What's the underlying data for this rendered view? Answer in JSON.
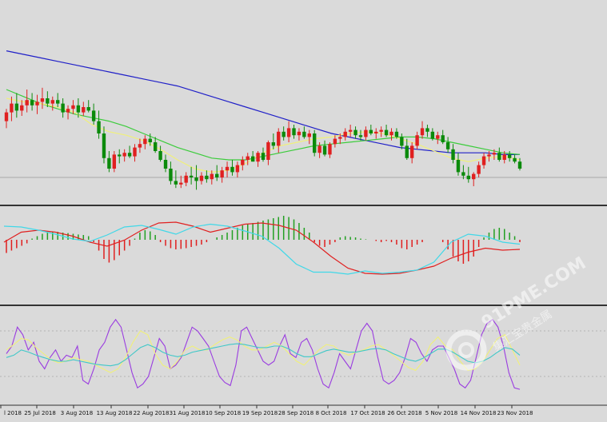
{
  "watermark": {
    "text": "91PME.COM",
    "subtext": "集汇宝贵金属"
  },
  "colors": {
    "background": "#dadada",
    "bull": "#e02020",
    "bear": "#0b8a0b",
    "doji": "#0a0a0a",
    "ma_slow": "#2020c8",
    "ma_mid": "#3ccc3c",
    "ma_fast": "#f0f07a",
    "macd_hist_pos": "#22a022",
    "macd_hist_neg": "#e02020",
    "macd_signal": "#e02020",
    "macd_main": "#40d8e8",
    "stoch_k": "#9a3ce0",
    "stoch_d": "#f0f07a",
    "stoch_slow": "#40c8c8",
    "divider": "#333333",
    "level_line": "#a8a8a8"
  },
  "chart_data": [
    {
      "type": "candlestick",
      "panel": "price",
      "x_axis_labels": [
        "l 2018",
        "25 Jul 2018",
        "3 Aug 2018",
        "13 Aug 2018",
        "22 Aug 2018",
        "31 Aug 2018",
        "10 Sep 2018",
        "19 Sep 2018",
        "28 Sep 2018",
        "8 Oct 2018",
        "17 Oct 2018",
        "26 Oct 2018",
        "5 Nov 2018",
        "14 Nov 2018",
        "23 Nov 2018"
      ],
      "ohlc": [
        [
          0.22,
          0.29,
          0.18,
          0.27
        ],
        [
          0.27,
          0.36,
          0.22,
          0.32
        ],
        [
          0.32,
          0.38,
          0.24,
          0.28
        ],
        [
          0.28,
          0.34,
          0.25,
          0.31
        ],
        [
          0.31,
          0.4,
          0.27,
          0.34
        ],
        [
          0.34,
          0.38,
          0.28,
          0.31
        ],
        [
          0.31,
          0.37,
          0.26,
          0.33
        ],
        [
          0.33,
          0.41,
          0.29,
          0.35
        ],
        [
          0.35,
          0.39,
          0.3,
          0.32
        ],
        [
          0.32,
          0.36,
          0.28,
          0.34
        ],
        [
          0.34,
          0.38,
          0.3,
          0.32
        ],
        [
          0.32,
          0.35,
          0.24,
          0.27
        ],
        [
          0.27,
          0.31,
          0.23,
          0.29
        ],
        [
          0.29,
          0.34,
          0.26,
          0.31
        ],
        [
          0.31,
          0.35,
          0.24,
          0.27
        ],
        [
          0.27,
          0.33,
          0.25,
          0.3
        ],
        [
          0.3,
          0.34,
          0.27,
          0.28
        ],
        [
          0.28,
          0.32,
          0.2,
          0.22
        ],
        [
          0.22,
          0.28,
          0.12,
          0.15
        ],
        [
          0.15,
          0.19,
          -0.02,
          0.01
        ],
        [
          0.01,
          0.05,
          -0.07,
          -0.05
        ],
        [
          -0.05,
          0.05,
          -0.07,
          0.03
        ],
        [
          0.03,
          0.06,
          -0.02,
          0.02
        ],
        [
          0.02,
          0.06,
          -0.01,
          0.04
        ],
        [
          0.04,
          0.08,
          0.01,
          0.02
        ],
        [
          0.02,
          0.09,
          -0.01,
          0.07
        ],
        [
          0.07,
          0.12,
          0.04,
          0.09
        ],
        [
          0.09,
          0.14,
          0.06,
          0.12
        ],
        [
          0.12,
          0.15,
          0.08,
          0.1
        ],
        [
          0.1,
          0.13,
          0.04,
          0.05
        ],
        [
          0.05,
          0.08,
          -0.01,
          0.0
        ],
        [
          0.0,
          0.03,
          -0.07,
          -0.05
        ],
        [
          -0.05,
          -0.01,
          -0.14,
          -0.12
        ],
        [
          -0.12,
          -0.06,
          -0.16,
          -0.14
        ],
        [
          -0.14,
          -0.09,
          -0.16,
          -0.13
        ],
        [
          -0.13,
          -0.07,
          -0.15,
          -0.09
        ],
        [
          -0.09,
          -0.04,
          -0.14,
          -0.1
        ],
        [
          -0.1,
          -0.03,
          -0.17,
          -0.12
        ],
        [
          -0.12,
          -0.07,
          -0.14,
          -0.09
        ],
        [
          -0.09,
          -0.06,
          -0.13,
          -0.11
        ],
        [
          -0.11,
          -0.06,
          -0.14,
          -0.08
        ],
        [
          -0.08,
          -0.03,
          -0.12,
          -0.1
        ],
        [
          -0.1,
          -0.04,
          -0.13,
          -0.06
        ],
        [
          -0.06,
          -0.01,
          -0.1,
          -0.04
        ],
        [
          -0.04,
          0.0,
          -0.09,
          -0.07
        ],
        [
          -0.07,
          -0.01,
          -0.1,
          -0.03
        ],
        [
          -0.03,
          0.02,
          -0.06,
          0.0
        ],
        [
          0.0,
          0.04,
          -0.03,
          0.02
        ],
        [
          0.02,
          0.05,
          -0.01,
          -0.01
        ],
        [
          -0.01,
          0.05,
          -0.04,
          0.04
        ],
        [
          0.04,
          0.07,
          -0.01,
          0.0
        ],
        [
          0.0,
          0.11,
          -0.03,
          0.1
        ],
        [
          0.1,
          0.15,
          0.06,
          0.08
        ],
        [
          0.08,
          0.18,
          0.04,
          0.16
        ],
        [
          0.16,
          0.19,
          0.11,
          0.13
        ],
        [
          0.13,
          0.22,
          0.1,
          0.18
        ],
        [
          0.18,
          0.2,
          0.12,
          0.14
        ],
        [
          0.14,
          0.18,
          0.11,
          0.16
        ],
        [
          0.16,
          0.19,
          0.12,
          0.13
        ],
        [
          0.13,
          0.17,
          0.09,
          0.15
        ],
        [
          0.15,
          0.17,
          0.02,
          0.04
        ],
        [
          0.04,
          0.1,
          0.01,
          0.08
        ],
        [
          0.08,
          0.11,
          0.02,
          0.03
        ],
        [
          0.03,
          0.1,
          0.01,
          0.09
        ],
        [
          0.09,
          0.14,
          0.07,
          0.12
        ],
        [
          0.12,
          0.15,
          0.09,
          0.13
        ],
        [
          0.13,
          0.18,
          0.11,
          0.16
        ],
        [
          0.16,
          0.2,
          0.13,
          0.17
        ],
        [
          0.17,
          0.19,
          0.12,
          0.14
        ],
        [
          0.14,
          0.17,
          0.11,
          0.13
        ],
        [
          0.13,
          0.19,
          0.11,
          0.17
        ],
        [
          0.17,
          0.2,
          0.14,
          0.15
        ],
        [
          0.15,
          0.18,
          0.12,
          0.16
        ],
        [
          0.16,
          0.19,
          0.13,
          0.17
        ],
        [
          0.17,
          0.2,
          0.13,
          0.14
        ],
        [
          0.14,
          0.18,
          0.11,
          0.16
        ],
        [
          0.16,
          0.18,
          0.12,
          0.13
        ],
        [
          0.13,
          0.15,
          0.06,
          0.08
        ],
        [
          0.08,
          0.12,
          0.0,
          0.01
        ],
        [
          0.01,
          0.1,
          -0.02,
          0.08
        ],
        [
          0.08,
          0.16,
          0.06,
          0.14
        ],
        [
          0.14,
          0.22,
          0.12,
          0.18
        ],
        [
          0.18,
          0.2,
          0.13,
          0.16
        ],
        [
          0.16,
          0.18,
          0.11,
          0.12
        ],
        [
          0.12,
          0.16,
          0.09,
          0.14
        ],
        [
          0.14,
          0.17,
          0.09,
          0.1
        ],
        [
          0.1,
          0.13,
          0.04,
          0.06
        ],
        [
          0.06,
          0.09,
          -0.02,
          0.0
        ],
        [
          0.0,
          0.04,
          -0.09,
          -0.07
        ],
        [
          -0.07,
          -0.03,
          -0.11,
          -0.09
        ],
        [
          -0.09,
          -0.04,
          -0.13,
          -0.11
        ],
        [
          -0.11,
          -0.07,
          -0.15,
          -0.08
        ],
        [
          -0.08,
          -0.01,
          -0.1,
          -0.03
        ],
        [
          -0.03,
          0.04,
          -0.05,
          0.02
        ],
        [
          0.02,
          0.05,
          -0.01,
          0.03
        ],
        [
          0.03,
          0.06,
          0.0,
          0.04
        ],
        [
          0.04,
          0.07,
          -0.01,
          0.0
        ],
        [
          0.0,
          0.05,
          -0.02,
          0.03
        ],
        [
          0.03,
          0.05,
          -0.01,
          0.01
        ],
        [
          0.01,
          0.03,
          -0.02,
          -0.01
        ],
        [
          -0.01,
          0.01,
          -0.06,
          -0.05
        ]
      ],
      "moving_averages": [
        {
          "color_key": "ma_slow",
          "values": [
            0.62,
            0.6,
            0.58,
            0.56,
            0.54,
            0.52,
            0.5,
            0.48,
            0.46,
            0.44,
            0.42,
            0.39,
            0.36,
            0.33,
            0.3,
            0.27,
            0.24,
            0.21,
            0.18,
            0.15,
            0.13,
            0.11,
            0.09,
            0.07,
            0.06,
            0.05,
            0.04,
            0.04,
            0.04,
            0.03,
            0.03
          ]
        },
        {
          "color_key": "ma_mid",
          "values": [
            0.4,
            0.36,
            0.32,
            0.29,
            0.26,
            0.24,
            0.22,
            0.19,
            0.15,
            0.11,
            0.07,
            0.04,
            0.01,
            0.0,
            0.0,
            0.02,
            0.04,
            0.06,
            0.08,
            0.09,
            0.1,
            0.11,
            0.12,
            0.13,
            0.13,
            0.12,
            0.1,
            0.08,
            0.06,
            0.04,
            0.03
          ]
        },
        {
          "color_key": "ma_fast",
          "values": [
            0.35,
            0.33,
            0.32,
            0.3,
            0.27,
            0.2,
            0.16,
            0.14,
            0.11,
            0.06,
            0.0,
            -0.05,
            -0.07,
            -0.06,
            -0.02,
            0.04,
            0.08,
            0.1,
            0.12,
            0.13,
            0.15,
            0.16,
            0.15,
            0.12,
            0.09,
            0.05,
            0.01,
            -0.01,
            0.01,
            0.02,
            0.0
          ]
        }
      ]
    },
    {
      "type": "histogram-with-lines",
      "panel": "macd",
      "histogram": [
        -0.55,
        -0.45,
        -0.35,
        -0.25,
        -0.15,
        0.05,
        0.15,
        0.25,
        0.3,
        0.35,
        0.33,
        0.3,
        0.28,
        0.25,
        0.22,
        0.2,
        0.15,
        -0.1,
        -0.45,
        -0.8,
        -0.95,
        -0.85,
        -0.65,
        -0.45,
        -0.25,
        0.05,
        0.3,
        0.4,
        0.35,
        0.2,
        -0.1,
        -0.25,
        -0.35,
        -0.4,
        -0.38,
        -0.35,
        -0.3,
        -0.25,
        -0.2,
        -0.1,
        0.0,
        0.1,
        0.2,
        0.3,
        0.4,
        0.5,
        0.6,
        0.65,
        0.7,
        0.75,
        0.8,
        0.85,
        0.9,
        0.95,
        1.0,
        0.95,
        0.85,
        0.7,
        0.5,
        0.3,
        -0.1,
        -0.25,
        -0.3,
        -0.2,
        -0.1,
        0.1,
        0.15,
        0.12,
        0.1,
        0.05,
        0.02,
        0.0,
        -0.05,
        -0.1,
        -0.05,
        -0.1,
        -0.2,
        -0.35,
        -0.4,
        -0.3,
        -0.2,
        -0.1,
        0.0,
        0.0,
        0.0,
        -0.1,
        -0.4,
        -0.7,
        -0.9,
        -1.0,
        -0.9,
        -0.7,
        -0.3,
        0.1,
        0.3,
        0.45,
        0.5,
        0.45,
        0.3,
        0.15,
        -0.1
      ],
      "lines": [
        {
          "color_key": "macd_signal",
          "values": [
            -0.3,
            -0.55,
            -0.6,
            -0.55,
            -0.45,
            -0.3,
            -0.2,
            -0.35,
            -0.6,
            -0.78,
            -0.8,
            -0.7,
            -0.55,
            -0.65,
            -0.75,
            -0.78,
            -0.72,
            -0.6,
            -0.3,
            0.05,
            0.35,
            0.48,
            0.5,
            0.48,
            0.4,
            0.3,
            0.1,
            -0.05,
            -0.15,
            -0.1,
            -0.12
          ]
        },
        {
          "color_key": "macd_main",
          "values": [
            -0.7,
            -0.68,
            -0.6,
            -0.5,
            -0.38,
            -0.32,
            -0.48,
            -0.68,
            -0.72,
            -0.62,
            -0.5,
            -0.68,
            -0.75,
            -0.7,
            -0.58,
            -0.45,
            -0.15,
            0.25,
            0.45,
            0.45,
            0.5,
            0.42,
            0.48,
            0.45,
            0.4,
            0.2,
            -0.3,
            -0.5,
            -0.45,
            -0.3,
            -0.25
          ]
        }
      ]
    },
    {
      "type": "line",
      "panel": "stochastic",
      "series": [
        {
          "color_key": "stoch_k",
          "values": [
            50,
            60,
            85,
            75,
            55,
            65,
            40,
            30,
            45,
            55,
            40,
            48,
            45,
            60,
            15,
            10,
            30,
            55,
            65,
            85,
            95,
            85,
            55,
            25,
            5,
            10,
            20,
            45,
            70,
            60,
            30,
            35,
            45,
            65,
            85,
            80,
            70,
            60,
            40,
            20,
            12,
            8,
            35,
            80,
            85,
            70,
            55,
            40,
            35,
            40,
            60,
            75,
            50,
            45,
            65,
            70,
            55,
            30,
            10,
            5,
            25,
            50,
            40,
            30,
            55,
            80,
            90,
            80,
            45,
            15,
            10,
            15,
            25,
            45,
            70,
            65,
            50,
            40,
            55,
            60,
            60,
            45,
            30,
            10,
            5,
            15,
            45,
            75,
            90,
            95,
            85,
            60,
            25,
            5,
            3
          ]
        },
        {
          "color_key": "stoch_d",
          "values": [
            55,
            62,
            70,
            68,
            58,
            50,
            42,
            38,
            40,
            45,
            42,
            40,
            35,
            30,
            25,
            30,
            45,
            65,
            80,
            75,
            50,
            35,
            30,
            40,
            55,
            60,
            55,
            55,
            62,
            68,
            72,
            68,
            60,
            55,
            55,
            60,
            65,
            60,
            50,
            40,
            35,
            45,
            55,
            62,
            60,
            52,
            48,
            52,
            55,
            60,
            62,
            55,
            48,
            40,
            32,
            28,
            40,
            62,
            72,
            60,
            55,
            40,
            28,
            30,
            40,
            55,
            70,
            75,
            55,
            35
          ]
        },
        {
          "color_key": "stoch_slow",
          "values": [
            45,
            48,
            55,
            52,
            48,
            45,
            42,
            40,
            40,
            42,
            40,
            38,
            36,
            35,
            34,
            36,
            42,
            50,
            58,
            62,
            58,
            52,
            48,
            46,
            48,
            52,
            54,
            56,
            58,
            60,
            62,
            63,
            62,
            60,
            58,
            58,
            60,
            60,
            56,
            50,
            46,
            46,
            50,
            54,
            56,
            54,
            52,
            52,
            54,
            56,
            57,
            55,
            50,
            46,
            42,
            40,
            44,
            50,
            56,
            56,
            52,
            46,
            40,
            38,
            40,
            45,
            52,
            58,
            56,
            48
          ]
        }
      ],
      "levels": [
        80,
        20
      ]
    }
  ]
}
